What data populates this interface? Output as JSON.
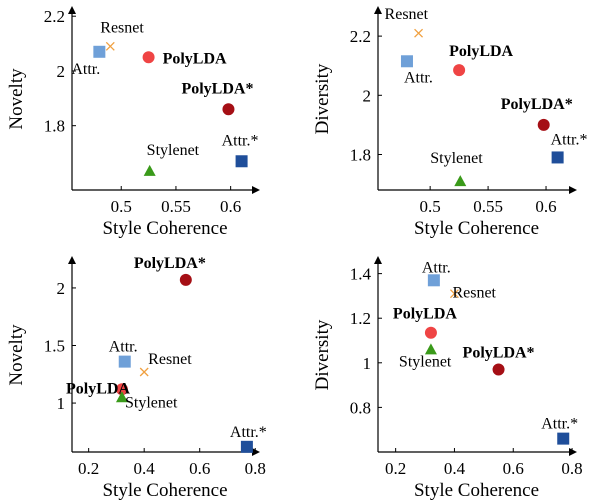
{
  "chart_data": [
    {
      "type": "scatter",
      "xlabel": "Style Coherence",
      "ylabel": "Novelty",
      "xlim": [
        0.455,
        0.625
      ],
      "ylim": [
        1.565,
        2.23
      ],
      "xticks": [
        "0.5",
        "0.55",
        "0.6"
      ],
      "yticks": [
        "1.8",
        "2",
        "2.2"
      ],
      "xtick_values": [
        0.5,
        0.55,
        0.6
      ],
      "ytick_values": [
        1.8,
        2.0,
        2.2
      ],
      "points": [
        {
          "label": "Attr.",
          "x": 0.48,
          "y": 2.07,
          "marker": "square",
          "color": "#6fa0d8",
          "bold": false
        },
        {
          "label": "Resnet",
          "x": 0.49,
          "y": 2.09,
          "marker": "x",
          "color": "#f0a040",
          "bold": false
        },
        {
          "label": "PolyLDA",
          "x": 0.525,
          "y": 2.05,
          "marker": "circle",
          "color": "#ef4444",
          "bold": true
        },
        {
          "label": "PolyLDA*",
          "x": 0.598,
          "y": 1.86,
          "marker": "circle",
          "color": "#a50f15",
          "bold": true
        },
        {
          "label": "Stylenet",
          "x": 0.526,
          "y": 1.635,
          "marker": "triangle",
          "color": "#3a9a1a",
          "bold": false
        },
        {
          "label": "Attr.*",
          "x": 0.61,
          "y": 1.67,
          "marker": "square",
          "color": "#1f4e9a",
          "bold": false
        }
      ]
    },
    {
      "type": "scatter",
      "xlabel": "Style Coherence",
      "ylabel": "Diversity",
      "xlim": [
        0.455,
        0.625
      ],
      "ylim": [
        1.68,
        2.295
      ],
      "xticks": [
        "0.5",
        "0.55",
        "0.6"
      ],
      "yticks": [
        "1.8",
        "2",
        "2.2"
      ],
      "xtick_values": [
        0.5,
        0.55,
        0.6
      ],
      "ytick_values": [
        1.8,
        2.0,
        2.2
      ],
      "points": [
        {
          "label": "Resnet",
          "x": 0.49,
          "y": 2.21,
          "marker": "x",
          "color": "#f0a040",
          "bold": false
        },
        {
          "label": "Attr.",
          "x": 0.48,
          "y": 2.115,
          "marker": "square",
          "color": "#6fa0d8",
          "bold": false
        },
        {
          "label": "PolyLDA",
          "x": 0.525,
          "y": 2.085,
          "marker": "circle",
          "color": "#ef4444",
          "bold": true
        },
        {
          "label": "PolyLDA*",
          "x": 0.598,
          "y": 1.9,
          "marker": "circle",
          "color": "#a50f15",
          "bold": true
        },
        {
          "label": "Attr.*",
          "x": 0.61,
          "y": 1.79,
          "marker": "square",
          "color": "#1f4e9a",
          "bold": false
        },
        {
          "label": "Stylenet",
          "x": 0.526,
          "y": 1.71,
          "marker": "triangle",
          "color": "#3a9a1a",
          "bold": false
        }
      ]
    },
    {
      "type": "scatter",
      "xlabel": "Style Coherence",
      "ylabel": "Novelty",
      "xlim": [
        0.14,
        0.81
      ],
      "ylim": [
        0.575,
        2.26
      ],
      "xticks": [
        "0.2",
        "0.4",
        "0.6",
        "0.8"
      ],
      "yticks": [
        "1",
        "1.5",
        "2"
      ],
      "xtick_values": [
        0.2,
        0.4,
        0.6,
        0.8
      ],
      "ytick_values": [
        1.0,
        1.5,
        2.0
      ],
      "points": [
        {
          "label": "PolyLDA*",
          "x": 0.55,
          "y": 2.07,
          "marker": "circle",
          "color": "#a50f15",
          "bold": true
        },
        {
          "label": "Attr.",
          "x": 0.33,
          "y": 1.36,
          "marker": "square",
          "color": "#6fa0d8",
          "bold": false
        },
        {
          "label": "Resnet",
          "x": 0.4,
          "y": 1.27,
          "marker": "x",
          "color": "#f0a040",
          "bold": false
        },
        {
          "label": "PolyLDA",
          "x": 0.32,
          "y": 1.12,
          "marker": "circle",
          "color": "#ef4444",
          "bold": true
        },
        {
          "label": "Stylenet",
          "x": 0.32,
          "y": 1.05,
          "marker": "triangle",
          "color": "#3a9a1a",
          "bold": false
        },
        {
          "label": "Attr.*",
          "x": 0.77,
          "y": 0.62,
          "marker": "square",
          "color": "#1f4e9a",
          "bold": false
        }
      ]
    },
    {
      "type": "scatter",
      "xlabel": "Style Coherence",
      "ylabel": "Diversity",
      "xlim": [
        0.14,
        0.81
      ],
      "ylim": [
        0.6,
        1.47
      ],
      "xticks": [
        "0.2",
        "0.4",
        "0.6",
        "0.8"
      ],
      "yticks": [
        "0.8",
        "1",
        "1.2",
        "1.4"
      ],
      "xtick_values": [
        0.2,
        0.4,
        0.6,
        0.8
      ],
      "ytick_values": [
        0.8,
        1.0,
        1.2,
        1.4
      ],
      "points": [
        {
          "label": "Attr.",
          "x": 0.33,
          "y": 1.37,
          "marker": "square",
          "color": "#6fa0d8",
          "bold": false
        },
        {
          "label": "Resnet",
          "x": 0.4,
          "y": 1.31,
          "marker": "x",
          "color": "#f0a040",
          "bold": false
        },
        {
          "label": "PolyLDA",
          "x": 0.32,
          "y": 1.135,
          "marker": "circle",
          "color": "#ef4444",
          "bold": true
        },
        {
          "label": "Stylenet",
          "x": 0.32,
          "y": 1.06,
          "marker": "triangle",
          "color": "#3a9a1a",
          "bold": false
        },
        {
          "label": "PolyLDA*",
          "x": 0.55,
          "y": 0.97,
          "marker": "circle",
          "color": "#a50f15",
          "bold": true
        },
        {
          "label": "Attr.*",
          "x": 0.77,
          "y": 0.66,
          "marker": "square",
          "color": "#1f4e9a",
          "bold": false
        }
      ]
    }
  ]
}
